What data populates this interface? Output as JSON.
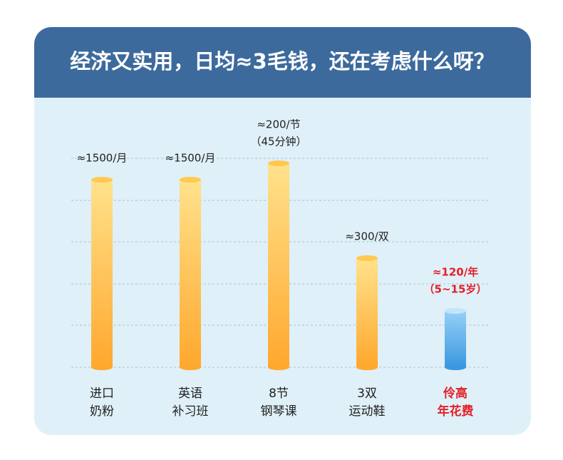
{
  "header": {
    "title": "经济又实用，日均≈3毛钱，还在考虑什么呀？"
  },
  "columns": [
    {
      "price": [
        "≈1500/月"
      ],
      "label": [
        "进口",
        "奶粉"
      ]
    },
    {
      "price": [
        "≈1500/月"
      ],
      "label": [
        "英语",
        "补习班"
      ]
    },
    {
      "price": [
        "≈200/节",
        "（45分钟）"
      ],
      "label": [
        "8节",
        "钢琴课"
      ]
    },
    {
      "price": [
        "≈300/双"
      ],
      "label": [
        "3双",
        "运动鞋"
      ]
    },
    {
      "price": [
        "≈120/年",
        "（5~15岁）"
      ],
      "label": [
        "伶高",
        "年花费"
      ]
    }
  ]
}
